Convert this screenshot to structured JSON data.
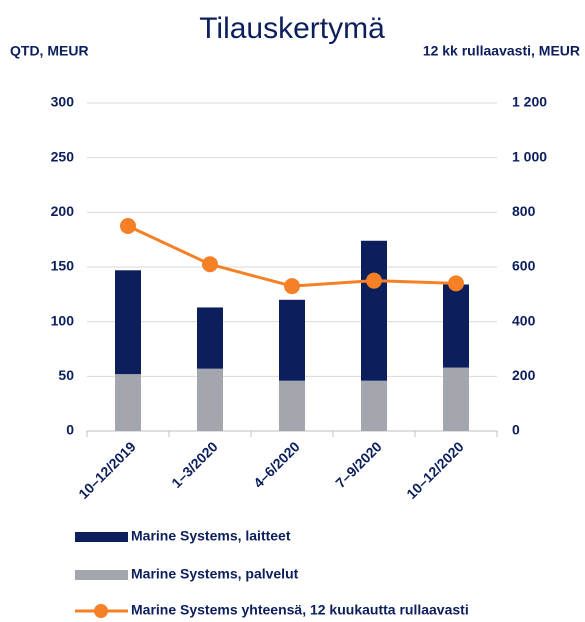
{
  "chart_data": {
    "type": "bar",
    "title": "Tilauskertymä",
    "y_axis_label": "QTD, MEUR",
    "y2_axis_label": "12 kk rullaavasti, MEUR",
    "categories": [
      "10–12/2019",
      "1–3/2020",
      "4–6/2020",
      "7–9/2020",
      "10–12/2020"
    ],
    "series": [
      {
        "name": "Marine Systems, laitteet",
        "color": "#0c1f5c",
        "values": [
          95,
          56,
          74,
          128,
          76
        ]
      },
      {
        "name": "Marine Systems, palvelut",
        "color": "#a3a6ad",
        "values": [
          52,
          57,
          46,
          46,
          58
        ]
      },
      {
        "name": "Marine Systems yhteensä, 12 kuukautta rullaavasti",
        "color": "#f58025",
        "type": "line",
        "axis": "y2",
        "values": [
          750,
          610,
          530,
          550,
          540
        ]
      }
    ],
    "ylim": [
      0,
      300
    ],
    "yticks": [
      0,
      50,
      100,
      150,
      200,
      250,
      300
    ],
    "y2lim": [
      0,
      1200
    ],
    "y2ticks": [
      0,
      200,
      400,
      600,
      800,
      {
        "value": 1000,
        "label": "1 000"
      },
      {
        "value": 1200,
        "label": "1 200"
      }
    ],
    "grid": true
  }
}
